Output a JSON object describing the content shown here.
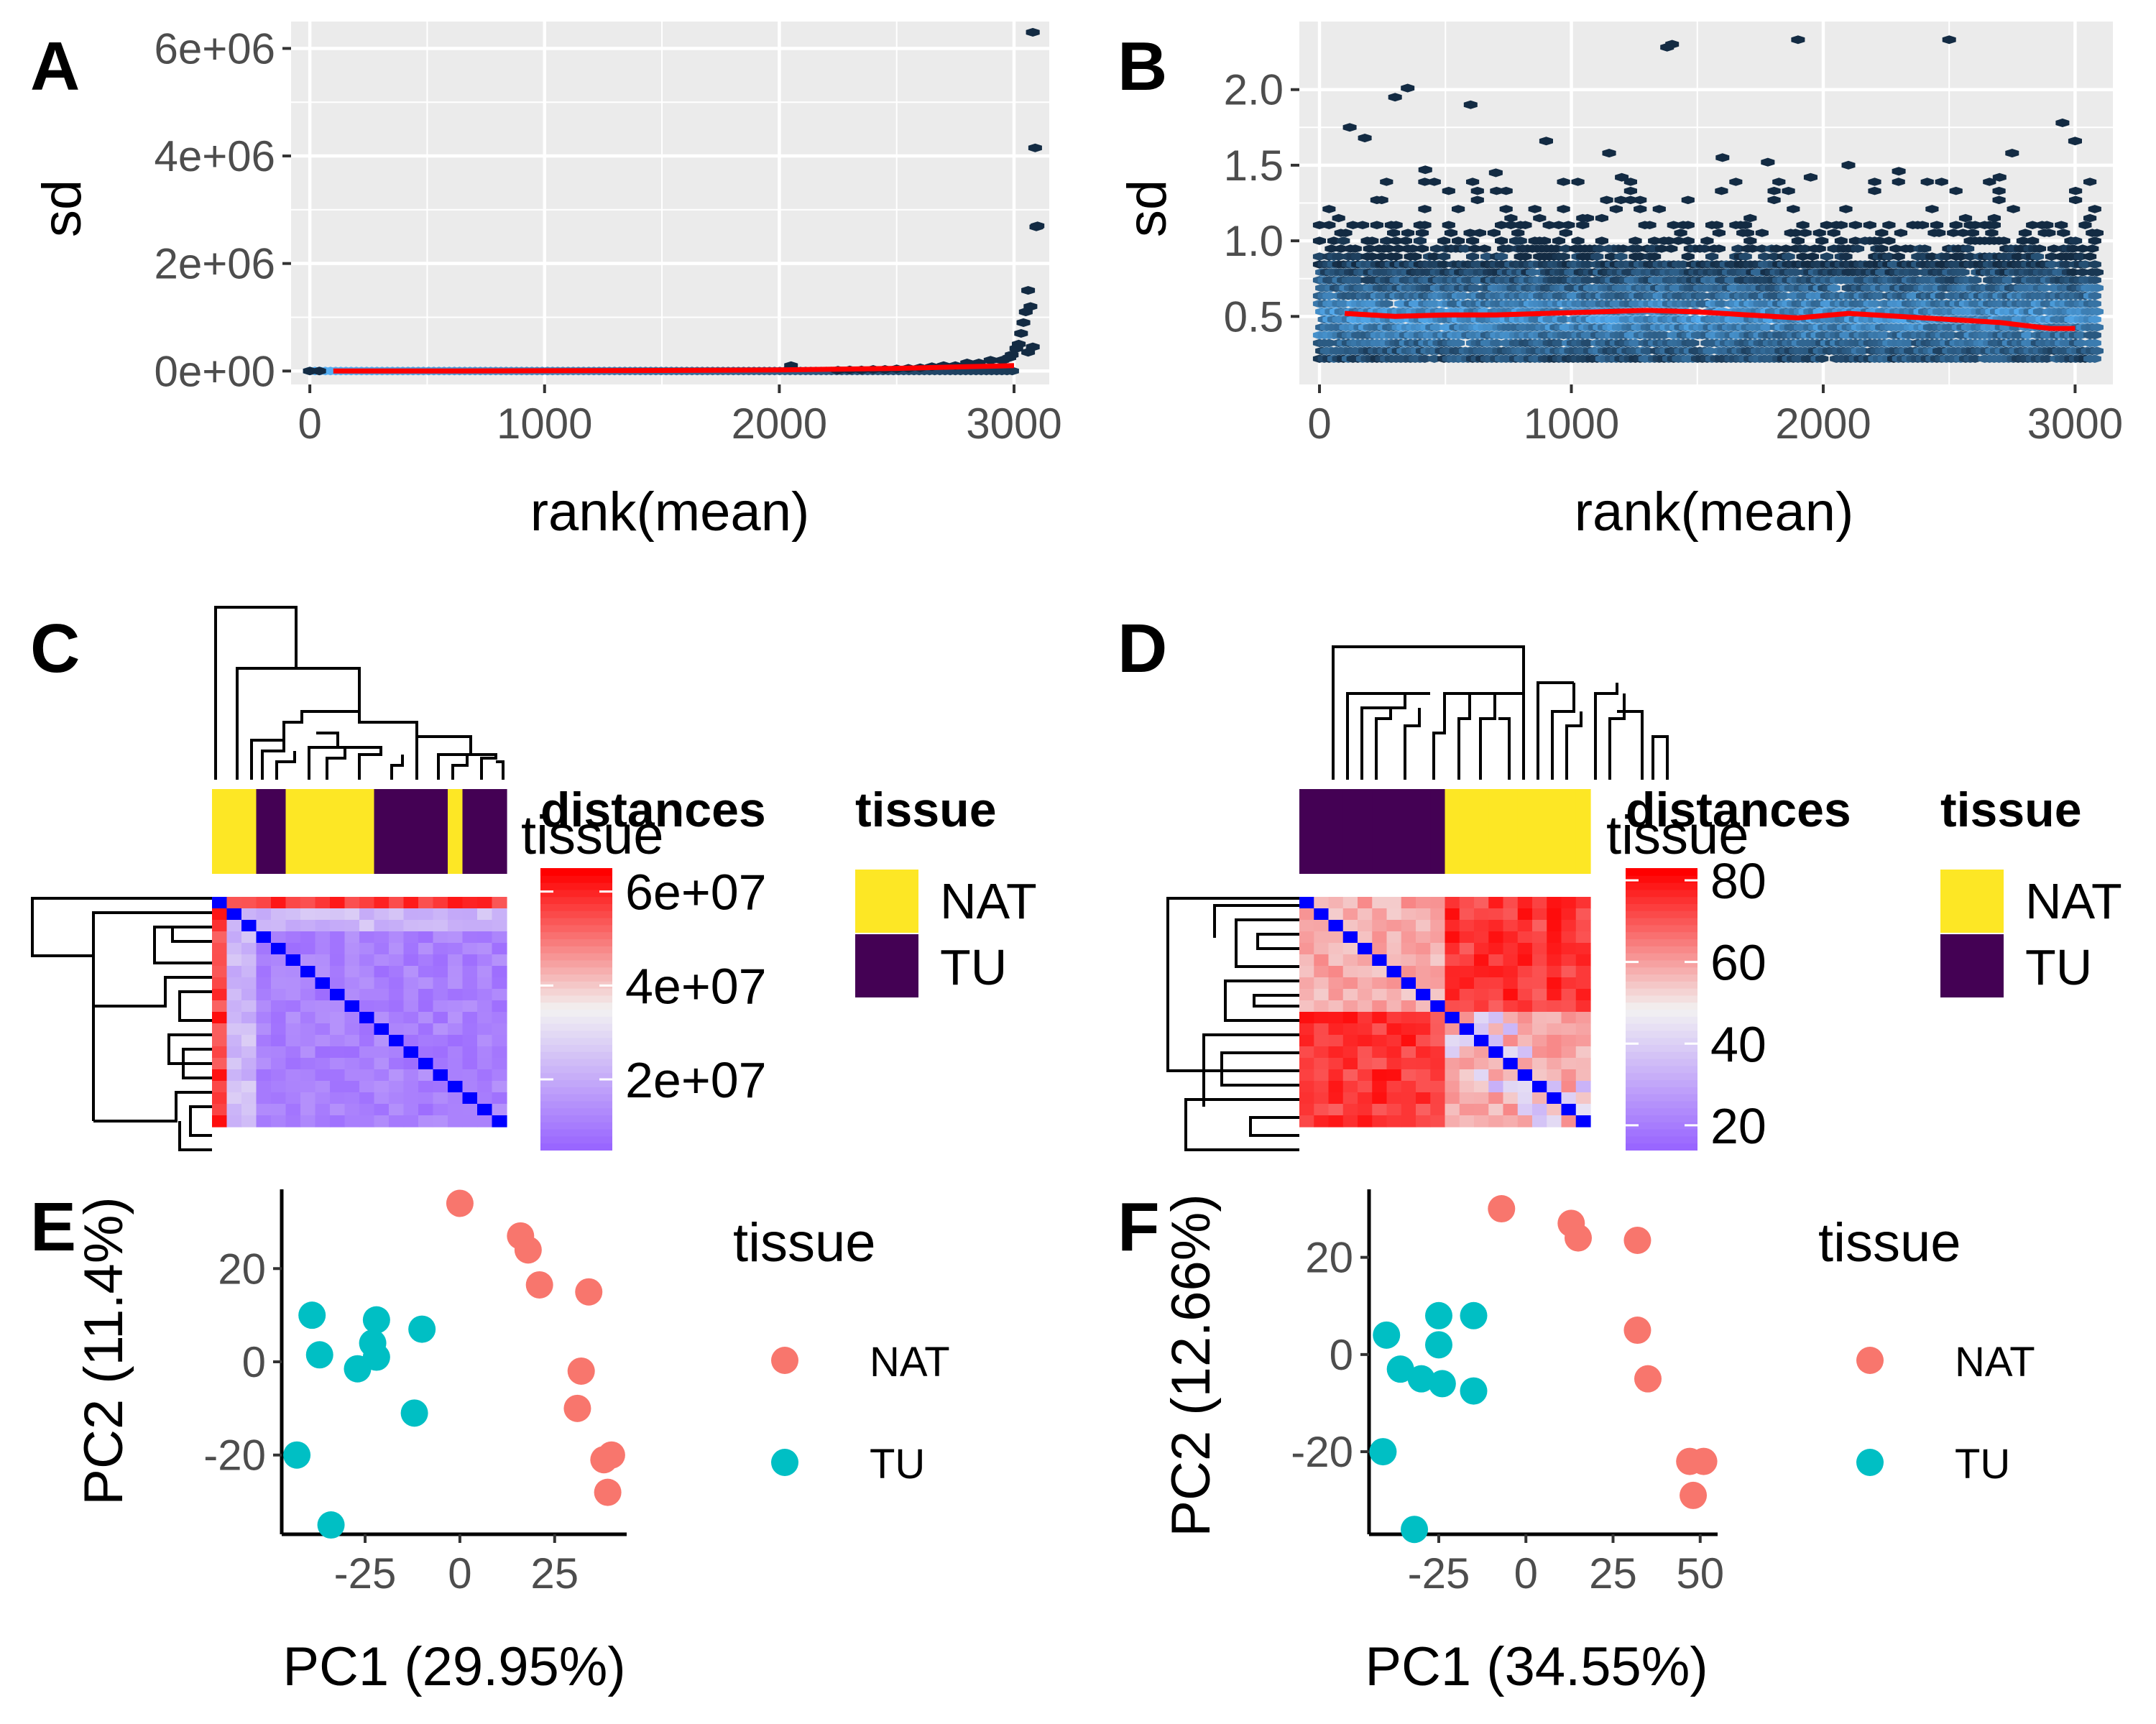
{
  "panels": {
    "A": "A",
    "B": "B",
    "C": "C",
    "D": "D",
    "E": "E",
    "F": "F"
  },
  "colors": {
    "panel_bg": "#ebebeb",
    "grid": "#ffffff",
    "trend": "#ff0000",
    "hex_dark": "#132b43",
    "hex_light": "#56b1f7",
    "NAT": "#f8766d",
    "TU": "#00bfc4",
    "tissue_NAT": "#fde725",
    "tissue_TU": "#440154",
    "heat_low": "#9966ff",
    "heat_mid": "#f2f2f2",
    "heat_high": "#ff0000",
    "diag": "#0000ff"
  },
  "chart_data": [
    {
      "id": "A",
      "type": "scatter",
      "subtype": "hexbin",
      "xlabel": "rank(mean)",
      "ylabel": "sd",
      "xlim": [
        -80,
        3150
      ],
      "ylim": [
        -250000,
        6500000
      ],
      "xticks": [
        0,
        1000,
        2000,
        3000
      ],
      "xtick_labels": [
        "0",
        "1000",
        "2000",
        "3000"
      ],
      "yticks": [
        0,
        2000000,
        4000000,
        6000000
      ],
      "ytick_labels": [
        "0e+00",
        "2e+06",
        "4e+06",
        "6e+06"
      ],
      "grid": true,
      "points": [
        [
          0,
          0
        ],
        [
          40,
          0
        ],
        [
          3080,
          6300000
        ],
        [
          3090,
          4150000
        ],
        [
          3100,
          2700000
        ],
        [
          3095,
          2680000
        ],
        [
          3060,
          1500000
        ],
        [
          3070,
          1200000
        ],
        [
          3050,
          1100000
        ],
        [
          3040,
          900000
        ],
        [
          3030,
          700000
        ],
        [
          3020,
          500000
        ],
        [
          3010,
          420000
        ],
        [
          2990,
          300000
        ],
        [
          2980,
          250000
        ],
        [
          2950,
          200000
        ],
        [
          2900,
          200000
        ],
        [
          2850,
          150000
        ],
        [
          2800,
          150000
        ],
        [
          2750,
          100000
        ],
        [
          2700,
          100000
        ],
        [
          2650,
          80000
        ],
        [
          2600,
          60000
        ],
        [
          2550,
          50000
        ],
        [
          2500,
          40000
        ],
        [
          2450,
          30000
        ],
        [
          2400,
          30000
        ],
        [
          2350,
          20000
        ],
        [
          2300,
          20000
        ],
        [
          2250,
          15000
        ],
        [
          2050,
          100000
        ],
        [
          3080,
          450000
        ],
        [
          3060,
          350000
        ]
      ],
      "trend": {
        "x": [
          100,
          500,
          1000,
          1500,
          2000,
          2500,
          2800,
          3000
        ],
        "y": [
          0,
          0,
          5000,
          10000,
          20000,
          50000,
          80000,
          100000
        ]
      }
    },
    {
      "id": "B",
      "type": "scatter",
      "subtype": "hexbin",
      "xlabel": "rank(mean)",
      "ylabel": "sd",
      "xlim": [
        -80,
        3150
      ],
      "ylim": [
        0.05,
        2.45
      ],
      "xticks": [
        0,
        1000,
        2000,
        3000
      ],
      "xtick_labels": [
        "0",
        "1000",
        "2000",
        "3000"
      ],
      "yticks": [
        0.5,
        1.0,
        1.5,
        2.0
      ],
      "ytick_labels": [
        "0.5",
        "1.0",
        "1.5",
        "2.0"
      ],
      "grid": true,
      "outliers": [
        [
          1900,
          2.33
        ],
        [
          1400,
          2.3
        ],
        [
          1380,
          2.28
        ],
        [
          2500,
          2.33
        ],
        [
          350,
          2.01
        ],
        [
          300,
          1.95
        ],
        [
          600,
          1.9
        ],
        [
          120,
          1.75
        ],
        [
          180,
          1.68
        ],
        [
          2950,
          1.78
        ],
        [
          3000,
          1.66
        ],
        [
          900,
          1.66
        ],
        [
          1150,
          1.58
        ],
        [
          1600,
          1.55
        ],
        [
          1780,
          1.52
        ],
        [
          2100,
          1.5
        ],
        [
          2300,
          1.46
        ],
        [
          2700,
          1.42
        ],
        [
          1200,
          1.42
        ],
        [
          1950,
          1.42
        ],
        [
          420,
          1.47
        ],
        [
          700,
          1.45
        ],
        [
          2750,
          1.58
        ]
      ],
      "trend": {
        "x": [
          100,
          300,
          500,
          700,
          900,
          1100,
          1300,
          1500,
          1700,
          1900,
          2100,
          2300,
          2500,
          2700,
          2900,
          3000
        ],
        "y": [
          0.52,
          0.5,
          0.51,
          0.51,
          0.52,
          0.53,
          0.54,
          0.53,
          0.51,
          0.49,
          0.52,
          0.5,
          0.48,
          0.46,
          0.42,
          0.42
        ]
      }
    },
    {
      "id": "C",
      "type": "heatmap",
      "n": 20,
      "tissue_order": [
        "NAT",
        "NAT",
        "NAT",
        "TU",
        "TU",
        "NAT",
        "NAT",
        "NAT",
        "NAT",
        "NAT",
        "NAT",
        "TU",
        "TU",
        "TU",
        "TU",
        "TU",
        "NAT",
        "TU",
        "TU",
        "TU"
      ],
      "colorbar": {
        "title": "distances",
        "overlay_title": "tissue",
        "min": 5000000,
        "max": 65000000,
        "ticks": [
          20000000,
          40000000,
          60000000
        ],
        "tick_labels": [
          "2e+07",
          "4e+07",
          "6e+07"
        ]
      },
      "legend": {
        "title": "tissue",
        "items": [
          "NAT",
          "TU"
        ]
      }
    },
    {
      "id": "D",
      "type": "heatmap",
      "n": 20,
      "tissue_order": [
        "TU",
        "TU",
        "TU",
        "TU",
        "TU",
        "TU",
        "TU",
        "TU",
        "TU",
        "TU",
        "NAT",
        "NAT",
        "NAT",
        "NAT",
        "NAT",
        "NAT",
        "NAT",
        "NAT",
        "NAT",
        "NAT"
      ],
      "colorbar": {
        "title": "distances",
        "overlay_title": "tissue",
        "min": 14,
        "max": 83,
        "ticks": [
          20,
          40,
          60,
          80
        ],
        "tick_labels": [
          "20",
          "40",
          "60",
          "80"
        ]
      },
      "legend": {
        "title": "tissue",
        "items": [
          "NAT",
          "TU"
        ]
      }
    },
    {
      "id": "E",
      "type": "scatter",
      "xlabel": "PC1 (29.95%)",
      "ylabel": "PC2 (11.4%)",
      "xlim": [
        -47,
        44
      ],
      "ylim": [
        -37,
        37
      ],
      "xticks": [
        -25,
        0,
        25
      ],
      "xtick_labels": [
        "-25",
        "0",
        "25"
      ],
      "yticks": [
        -20,
        0,
        20
      ],
      "ytick_labels": [
        "-20",
        "0",
        "20"
      ],
      "series": [
        {
          "name": "NAT",
          "points": [
            [
              0,
              34
            ],
            [
              16,
              27
            ],
            [
              18,
              24
            ],
            [
              21,
              16.5
            ],
            [
              34,
              15
            ],
            [
              32,
              -2
            ],
            [
              31,
              -10
            ],
            [
              38,
              -21
            ],
            [
              40,
              -20
            ],
            [
              39,
              -28
            ]
          ]
        },
        {
          "name": "TU",
          "points": [
            [
              -39,
              10
            ],
            [
              -37,
              1.5
            ],
            [
              -22,
              9
            ],
            [
              -23,
              4
            ],
            [
              -22,
              1
            ],
            [
              -27,
              -1.5
            ],
            [
              -10,
              7
            ],
            [
              -12,
              -11
            ],
            [
              -43,
              -20
            ],
            [
              -34,
              -35
            ]
          ]
        }
      ],
      "legend": {
        "title": "tissue",
        "items": [
          "NAT",
          "TU"
        ]
      }
    },
    {
      "id": "F",
      "type": "scatter",
      "xlabel": "PC1 (34.55%)",
      "ylabel": "PC2 (12.66%)",
      "xlim": [
        -45,
        55
      ],
      "ylim": [
        -37,
        34
      ],
      "xticks": [
        -25,
        0,
        25,
        50
      ],
      "xtick_labels": [
        "-25",
        "0",
        "25",
        "50"
      ],
      "yticks": [
        -20,
        0,
        20
      ],
      "ytick_labels": [
        "-20",
        "0",
        "20"
      ],
      "series": [
        {
          "name": "NAT",
          "points": [
            [
              -7,
              30
            ],
            [
              13,
              27
            ],
            [
              15,
              24
            ],
            [
              32,
              23.5
            ],
            [
              32,
              5
            ],
            [
              35,
              -5
            ],
            [
              47,
              -22
            ],
            [
              51,
              -22
            ],
            [
              48,
              -29
            ]
          ]
        },
        {
          "name": "TU",
          "points": [
            [
              -40,
              4
            ],
            [
              -36,
              -3
            ],
            [
              -25,
              8
            ],
            [
              -25,
              2
            ],
            [
              -15,
              8
            ],
            [
              -30,
              -5
            ],
            [
              -24,
              -6
            ],
            [
              -15,
              -7.5
            ],
            [
              -41,
              -20
            ],
            [
              -32,
              -36
            ]
          ]
        }
      ],
      "legend": {
        "title": "tissue",
        "items": [
          "NAT",
          "TU"
        ]
      }
    }
  ]
}
